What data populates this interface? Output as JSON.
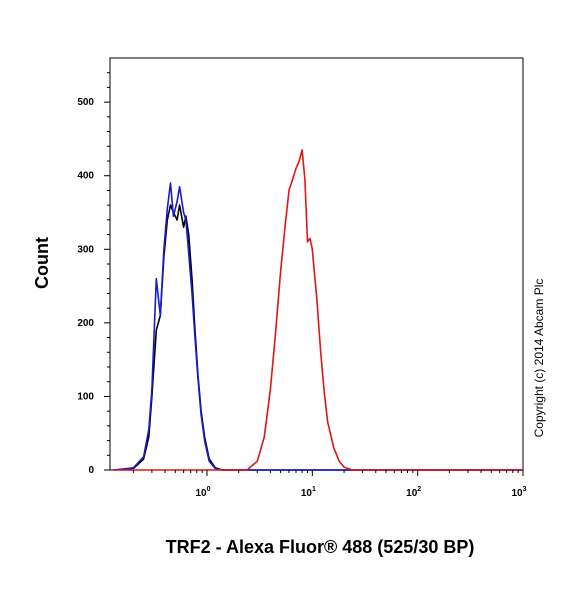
{
  "chart_data": {
    "type": "line",
    "xlabel": "TRF2 - Alexa Fluor® 488 (525/30 BP)",
    "ylabel": "Count",
    "xscale": "log",
    "xlim": [
      0.12,
      1000
    ],
    "ylim": [
      0,
      560
    ],
    "x_ticks": [
      {
        "base": "10",
        "exp": "0",
        "value": 1
      },
      {
        "base": "10",
        "exp": "1",
        "value": 10
      },
      {
        "base": "10",
        "exp": "2",
        "value": 100
      },
      {
        "base": "10",
        "exp": "3",
        "value": 1000
      }
    ],
    "y_ticks": [
      {
        "label": "0",
        "value": 0
      },
      {
        "label": "100",
        "value": 100
      },
      {
        "label": "200",
        "value": 200
      },
      {
        "label": "300",
        "value": 300
      },
      {
        "label": "400",
        "value": 400
      },
      {
        "label": "500",
        "value": 500
      }
    ],
    "grid": false,
    "annotation": "Copyright (c) 2014 Abcam Plc",
    "series": [
      {
        "color": "#000000",
        "x": [
          0.13,
          0.2,
          0.25,
          0.28,
          0.3,
          0.33,
          0.36,
          0.39,
          0.42,
          0.45,
          0.48,
          0.52,
          0.55,
          0.6,
          0.63,
          0.67,
          0.72,
          0.77,
          0.82,
          0.88,
          0.95,
          1.05,
          1.2,
          1.4,
          1000
        ],
        "y": [
          0,
          2,
          15,
          45,
          100,
          190,
          210,
          290,
          340,
          360,
          350,
          340,
          360,
          330,
          345,
          320,
          260,
          190,
          130,
          80,
          45,
          15,
          3,
          0,
          0
        ]
      },
      {
        "color": "#1a1ad6",
        "x": [
          0.13,
          0.2,
          0.25,
          0.28,
          0.3,
          0.33,
          0.36,
          0.39,
          0.42,
          0.45,
          0.48,
          0.52,
          0.55,
          0.6,
          0.63,
          0.67,
          0.72,
          0.77,
          0.82,
          0.88,
          0.95,
          1.05,
          1.2,
          1.4,
          1000
        ],
        "y": [
          0,
          3,
          18,
          55,
          110,
          260,
          210,
          300,
          355,
          390,
          345,
          365,
          385,
          350,
          340,
          295,
          240,
          180,
          125,
          75,
          40,
          12,
          2,
          0,
          0
        ]
      },
      {
        "color": "#e01515",
        "x": [
          0.13,
          2.4,
          3.0,
          3.5,
          4.0,
          4.5,
          5.0,
          5.5,
          6.0,
          6.5,
          7.0,
          7.5,
          8.0,
          8.5,
          9.0,
          9.5,
          10.0,
          10.5,
          11.0,
          12.0,
          13.0,
          14.0,
          16.0,
          18.0,
          20.0,
          24.0,
          1000
        ],
        "y": [
          0,
          0,
          12,
          45,
          110,
          190,
          270,
          330,
          380,
          395,
          410,
          420,
          435,
          395,
          310,
          315,
          300,
          265,
          235,
          160,
          105,
          65,
          30,
          12,
          4,
          0,
          0
        ]
      }
    ]
  }
}
